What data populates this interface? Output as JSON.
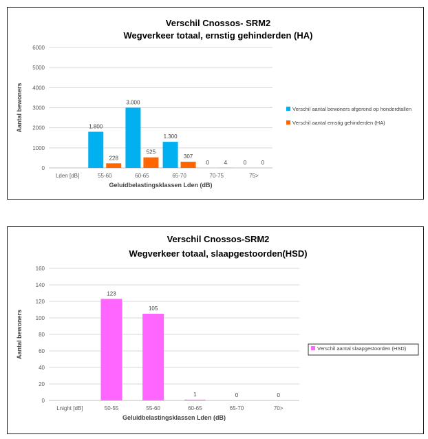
{
  "chart_data": [
    {
      "type": "bar",
      "title_line1": "Verschil Cnossos- SRM2",
      "title_line2": "Wegverkeer totaal, ernstig gehinderden (HA)",
      "xlabel": "Geluidbelastingsklassen Lden (dB)",
      "ylabel": "Aantal bewoners",
      "categories": [
        "Lden [dB]",
        "55-60",
        "60-65",
        "65-70",
        "70-75",
        "75>"
      ],
      "ylim": [
        0,
        6000
      ],
      "yticks": [
        "0",
        "1000",
        "2000",
        "3000",
        "4000",
        "5000",
        "6000"
      ],
      "grid": true,
      "legend_position": "right",
      "series": [
        {
          "name": "Verschil aantal bewoners afgerond op honderdtallen",
          "color": "#00b0f0",
          "values": [
            null,
            1800,
            3000,
            1300,
            0,
            0
          ],
          "labels": [
            "",
            "1.800",
            "3.000",
            "1.300",
            "0",
            "0"
          ]
        },
        {
          "name": "Verschil aantal ernstig gehinderden (HA)",
          "color": "#ff6600",
          "values": [
            null,
            228,
            525,
            307,
            4,
            0
          ],
          "labels": [
            "",
            "228",
            "525",
            "307",
            "4",
            "0"
          ]
        }
      ]
    },
    {
      "type": "bar",
      "title_line1": "Verschil Cnossos-SRM2",
      "title_line2": "Wegverkeer totaal, slaapgestoorden(HSD)",
      "xlabel": "Geluidbelastingsklassen Lden (dB)",
      "ylabel": "Aantal bewoners",
      "categories": [
        "Lnight [dB]",
        "50-55",
        "55-60",
        "60-65",
        "65-70",
        "70>"
      ],
      "ylim": [
        0,
        160
      ],
      "yticks": [
        "0",
        "20",
        "40",
        "60",
        "80",
        "100",
        "120",
        "140",
        "160"
      ],
      "grid": true,
      "legend_position": "right",
      "series": [
        {
          "name": "Verschil aantal slaapgestoorden (HSD)",
          "color": "#ff66ff",
          "values": [
            null,
            123,
            105,
            1,
            0,
            0
          ],
          "labels": [
            "",
            "123",
            "105",
            "1",
            "0",
            "0"
          ]
        }
      ]
    }
  ]
}
